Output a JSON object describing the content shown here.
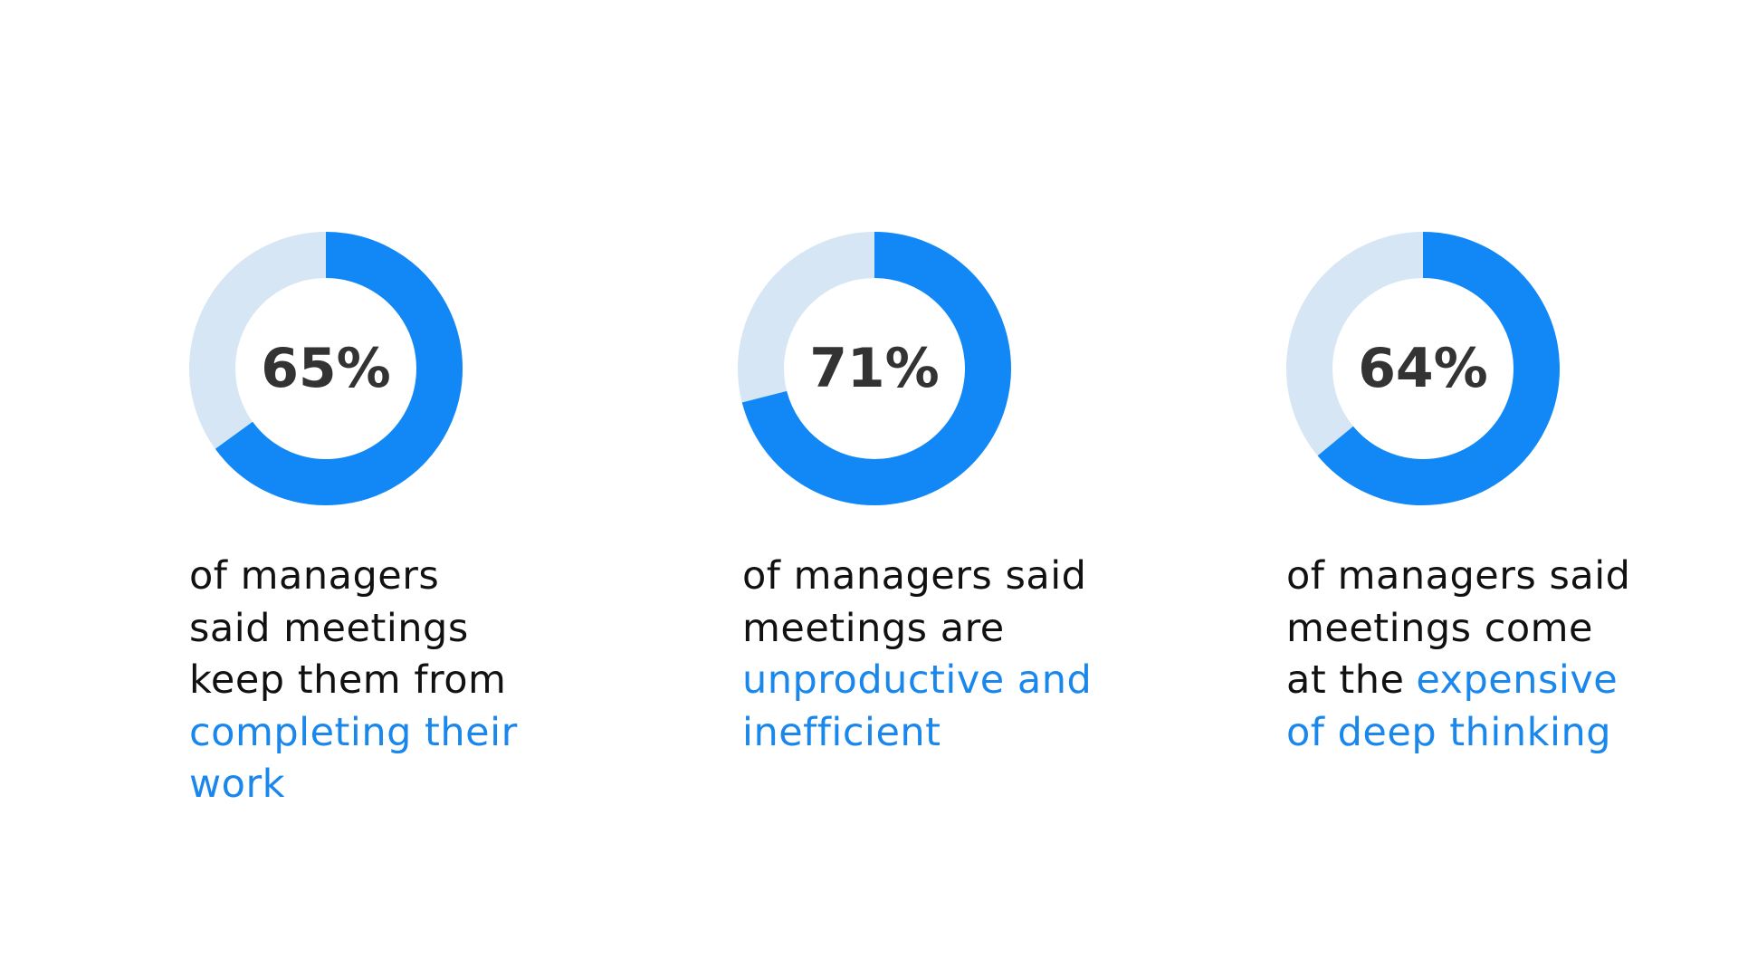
{
  "chart_data": [
    {
      "type": "donut",
      "values": [
        65
      ],
      "value_labels": [
        "65%"
      ],
      "color": "#1188f5",
      "track_color": "#d6e6f5",
      "highlight_color": "#1a87ec",
      "caption_lines": [
        [
          {
            "text": "of managers"
          }
        ],
        [
          {
            "text": "said meetings"
          }
        ],
        [
          {
            "text": "keep them from"
          }
        ],
        [
          {
            "text": "completing their",
            "highlight": true
          }
        ],
        [
          {
            "text": "work",
            "highlight": true
          }
        ]
      ]
    },
    {
      "type": "donut",
      "values": [
        71
      ],
      "value_labels": [
        "71%"
      ],
      "color": "#1188f5",
      "track_color": "#d6e6f5",
      "highlight_color": "#1a87ec",
      "caption_lines": [
        [
          {
            "text": "of managers said"
          }
        ],
        [
          {
            "text": "meetings are"
          }
        ],
        [
          {
            "text": "unproductive and",
            "highlight": true
          }
        ],
        [
          {
            "text": "inefficient",
            "highlight": true
          }
        ]
      ]
    },
    {
      "type": "donut",
      "values": [
        64
      ],
      "value_labels": [
        "64%"
      ],
      "color": "#1188f5",
      "track_color": "#d6e6f5",
      "highlight_color": "#1a87ec",
      "caption_lines": [
        [
          {
            "text": "of managers said"
          }
        ],
        [
          {
            "text": "meetings come"
          }
        ],
        [
          {
            "text": "at the"
          },
          {
            "text": "expensive",
            "highlight": true
          }
        ],
        [
          {
            "text": "of deep thinking",
            "highlight": true
          }
        ]
      ]
    }
  ]
}
